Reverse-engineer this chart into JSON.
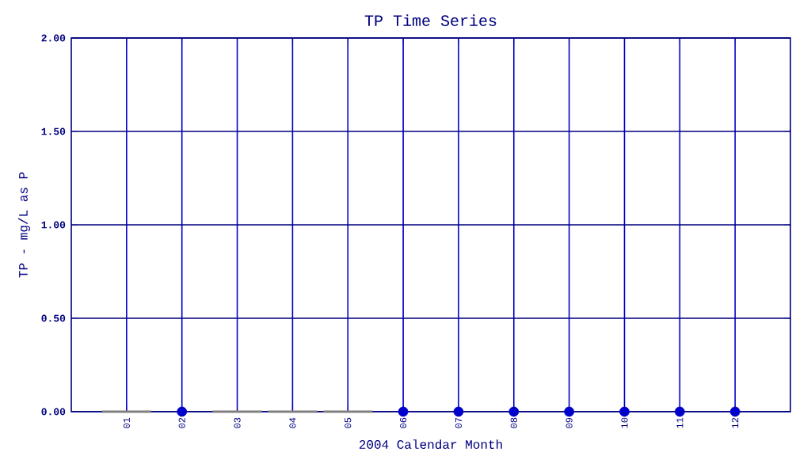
{
  "chart_data": {
    "type": "scatter",
    "title": "TP Time Series",
    "xlabel": "2004 Calendar Month",
    "ylabel": "TP - mg/L as P",
    "categories": [
      "01",
      "02",
      "03",
      "04",
      "05",
      "06",
      "07",
      "08",
      "09",
      "10",
      "11",
      "12"
    ],
    "series": [
      {
        "type": "bar",
        "color": "#808080",
        "values": [
          0,
          null,
          0,
          0,
          0,
          null,
          null,
          null,
          null,
          null,
          null,
          null
        ]
      },
      {
        "color": "#0000cc",
        "values": [
          null,
          0,
          null,
          null,
          null,
          0,
          0,
          0,
          0,
          0,
          0,
          0
        ]
      }
    ],
    "ylim": [
      0,
      2
    ],
    "yticks": [
      {
        "value": 0,
        "label": "0.00"
      },
      {
        "value": 0.5,
        "label": "0.50"
      },
      {
        "value": 1,
        "label": "1.00"
      },
      {
        "value": 1.5,
        "label": "1.50"
      },
      {
        "value": 2,
        "label": "2.00"
      }
    ],
    "marker": "circle",
    "grid": true
  }
}
